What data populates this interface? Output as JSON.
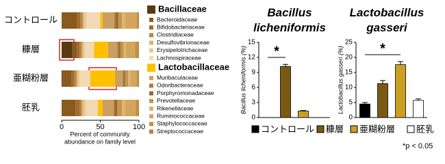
{
  "chart_data": [
    {
      "type": "stacked-bar-horizontal",
      "xlabel": [
        "Percent of community",
        "abundance on family level"
      ],
      "categories": [
        "コントロール",
        "糠層",
        "亜糊粉層",
        "胚乳"
      ],
      "xlim": [
        0,
        100
      ],
      "xticks": [
        0,
        50,
        100
      ],
      "series": [
        {
          "name": "Bacillaceae",
          "color": "#5b3a12",
          "values": [
            0,
            14,
            1,
            0
          ]
        },
        {
          "name": "Bacteroidaceae",
          "color": "#8a5a1e",
          "values": [
            20,
            6,
            12,
            18
          ]
        },
        {
          "name": "Bifidobacteriaceae",
          "color": "#a46b2a",
          "values": [
            4,
            3,
            3,
            5
          ]
        },
        {
          "name": "Clostridiaceae",
          "color": "#b98440",
          "values": [
            3,
            3,
            3,
            3
          ]
        },
        {
          "name": "Desulfovibrionaceae",
          "color": "#d8b274",
          "values": [
            2,
            2,
            2,
            2
          ]
        },
        {
          "name": "Erysipelotrichaceae",
          "color": "#e7c796",
          "values": [
            3,
            2,
            2,
            3
          ]
        },
        {
          "name": "Lachnospiraceae",
          "color": "#f1d9b4",
          "values": [
            18,
            12,
            14,
            16
          ]
        },
        {
          "name": "Lactobacillaceae",
          "color": "#ffc000",
          "values": [
            3,
            18,
            32,
            6
          ]
        },
        {
          "name": "Muribaculaceae",
          "color": "#c9a062",
          "values": [
            15,
            12,
            10,
            14
          ]
        },
        {
          "name": "Odoribacteraceae",
          "color": "#b07a3a",
          "values": [
            2,
            2,
            1,
            2
          ]
        },
        {
          "name": "Porphyromonadaceae",
          "color": "#97682e",
          "values": [
            3,
            2,
            2,
            3
          ]
        },
        {
          "name": "Prevotellaceae",
          "color": "#c49452",
          "values": [
            5,
            4,
            4,
            6
          ]
        },
        {
          "name": "Rikenellaceae",
          "color": "#deb272",
          "values": [
            4,
            3,
            3,
            4
          ]
        },
        {
          "name": "Ruminococcaceae",
          "color": "#d2a65c",
          "values": [
            15,
            12,
            8,
            14
          ]
        },
        {
          "name": "Staphylococcaceae",
          "color": "#c28f3c",
          "values": [
            2,
            4,
            2,
            3
          ]
        },
        {
          "name": "Streptococcaceae",
          "color": "#b3823a",
          "values": [
            1,
            1,
            1,
            1
          ]
        }
      ]
    },
    {
      "type": "bar",
      "title": "Bacillus licheniformis",
      "ylabel": "Bacillus licheniformis (%)",
      "categories": [
        "コントロール",
        "糠層",
        "亜糊粉層",
        "胚乳"
      ],
      "colors": [
        "#000000",
        "#7a5a12",
        "#c9a022",
        "#ffffff"
      ],
      "values": [
        0,
        10.2,
        1.3,
        0
      ],
      "errors": [
        0,
        0.4,
        0.1,
        0
      ],
      "ylim": [
        0,
        15
      ],
      "yticks": [
        0,
        3,
        6,
        9,
        12,
        15
      ],
      "significance": "*"
    },
    {
      "type": "bar",
      "title": "Lactobacillus gasseri",
      "ylabel": "Lactobacillus gasseri (%)",
      "categories": [
        "コントロール",
        "糠層",
        "亜糊粉層",
        "胚乳"
      ],
      "colors": [
        "#000000",
        "#7a5a12",
        "#c9a022",
        "#ffffff"
      ],
      "values": [
        4.5,
        11.3,
        17.6,
        5.7
      ],
      "errors": [
        0.5,
        1.0,
        1.0,
        0.5
      ],
      "ylim": [
        0,
        25
      ],
      "yticks": [
        0,
        5,
        10,
        15,
        20,
        25
      ],
      "significance": "*"
    }
  ],
  "note": "*p < 0.05"
}
